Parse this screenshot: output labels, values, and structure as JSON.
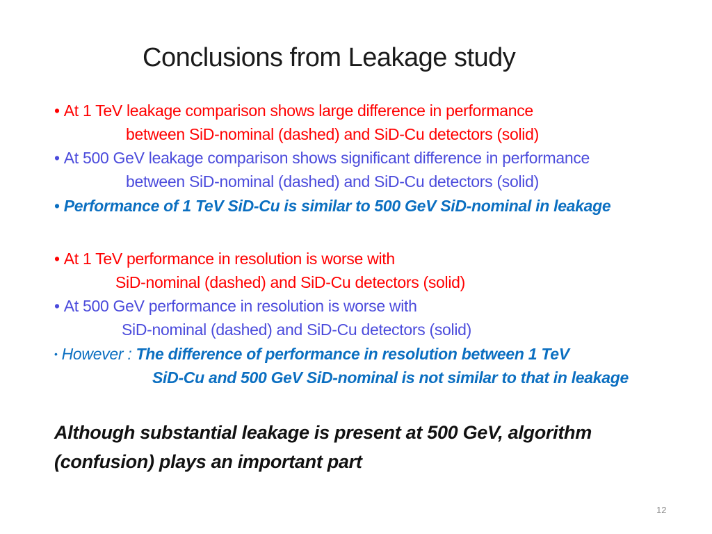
{
  "title": "Conclusions from Leakage study",
  "colors": {
    "red": "#ff0000",
    "blue": "#4b4bdc",
    "teal": "#0b6fc1",
    "text": "#111111"
  },
  "bullets": [
    {
      "bullet": "•",
      "line1": "At 1 TeV leakage comparison shows large difference in performance",
      "line2": "between SiD-nominal (dashed) and SiD-Cu detectors (solid)"
    },
    {
      "bullet": "•",
      "line1": "At 500 GeV leakage comparison shows significant difference in performance",
      "line2": "between SiD-nominal (dashed) and SiD-Cu detectors (solid)"
    },
    {
      "bullet": "•",
      "line1": "Performance of 1 TeV SiD-Cu is similar to 500 GeV SiD-nominal in leakage"
    },
    {
      "bullet": "•",
      "line1": "At 1 TeV performance in resolution is worse with",
      "line2": "SiD-nominal (dashed) and SiD-Cu detectors (solid)"
    },
    {
      "bullet": "•",
      "line1": "At 500 GeV performance in resolution is worse with",
      "line2": "SiD-nominal (dashed) and SiD-Cu detectors (solid)"
    },
    {
      "bullet": "•",
      "label": "However : ",
      "line1": "The difference of performance in resolution between 1 TeV",
      "line2": "SiD-Cu and 500 GeV SiD-nominal is not similar to that in leakage"
    }
  ],
  "conclusion": {
    "line1": "Although substantial leakage is present at 500 GeV, algorithm",
    "line2": "(confusion) plays an important part"
  },
  "page_number": "12"
}
